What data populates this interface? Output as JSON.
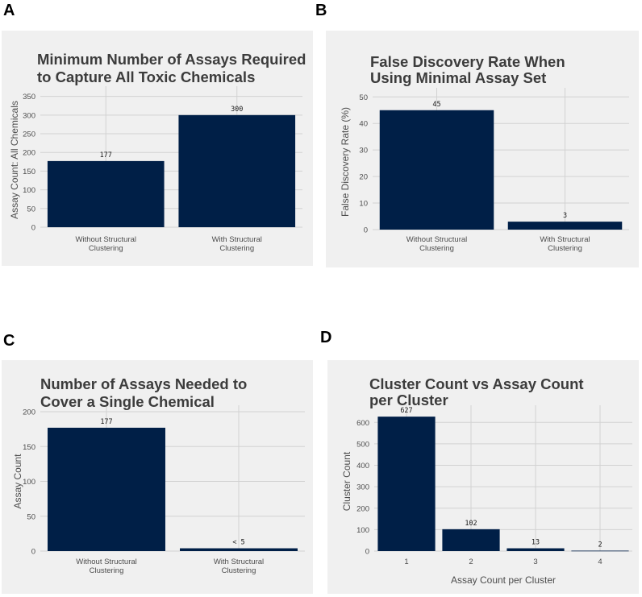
{
  "panels": [
    {
      "letter": "A"
    },
    {
      "letter": "B"
    },
    {
      "letter": "C"
    },
    {
      "letter": "D"
    }
  ],
  "chart_data": [
    {
      "type": "bar",
      "title": [
        "Minimum Number of Assays Required",
        "to Capture All Toxic Chemicals"
      ],
      "categories": [
        [
          "Without Structural",
          "Clustering"
        ],
        [
          "With Structural",
          "Clustering"
        ]
      ],
      "values": [
        177,
        300
      ],
      "data_labels": [
        "177",
        "300"
      ],
      "ylabel": "Assay Count: All Chemicals",
      "xlabel": "",
      "ylim": [
        0,
        360
      ],
      "yticks": [
        0,
        50,
        100,
        150,
        200,
        250,
        300,
        350
      ],
      "colors": {
        "bar": "#001f47",
        "background": "#f0f0f0",
        "grid": "#d2d2d2"
      }
    },
    {
      "type": "bar",
      "title": [
        "False Discovery Rate When",
        "Using Minimal Assay Set"
      ],
      "categories": [
        [
          "Without Structural",
          "Clustering"
        ],
        [
          "With Structural",
          "Clustering"
        ]
      ],
      "values": [
        45,
        3
      ],
      "data_labels": [
        "45",
        "3"
      ],
      "ylabel": "False Discovery Rate (%)",
      "xlabel": "",
      "ylim": [
        0,
        51
      ],
      "yticks": [
        0,
        10,
        20,
        30,
        40,
        50
      ],
      "colors": {
        "bar": "#001f47",
        "background": "#f0f0f0",
        "grid": "#d2d2d2"
      }
    },
    {
      "type": "bar",
      "title": [
        "Number of Assays Needed to",
        "Cover a Single Chemical"
      ],
      "categories": [
        [
          "Without Structural",
          "Clustering"
        ],
        [
          "With Structural",
          "Clustering"
        ]
      ],
      "values": [
        177,
        4
      ],
      "data_labels": [
        "177",
        "< 5"
      ],
      "ylabel": "Assay Count",
      "xlabel": "",
      "ylim": [
        0,
        200
      ],
      "yticks": [
        0,
        50,
        100,
        150,
        200
      ],
      "colors": {
        "bar": "#001f47",
        "background": "#f0f0f0",
        "grid": "#d2d2d2"
      }
    },
    {
      "type": "bar",
      "title": [
        "Cluster Count vs Assay Count",
        "per Cluster"
      ],
      "categories": [
        [
          "1"
        ],
        [
          "2"
        ],
        [
          "3"
        ],
        [
          "4"
        ]
      ],
      "values": [
        627,
        102,
        13,
        2
      ],
      "data_labels": [
        "627",
        "102",
        "13",
        "2"
      ],
      "ylabel": "Cluster Count",
      "xlabel": "Assay Count per Cluster",
      "ylim": [
        0,
        650
      ],
      "yticks": [
        0,
        100,
        200,
        300,
        400,
        500,
        600
      ],
      "colors": {
        "bar": "#001f47",
        "background": "#f0f0f0",
        "grid": "#d2d2d2"
      }
    }
  ]
}
